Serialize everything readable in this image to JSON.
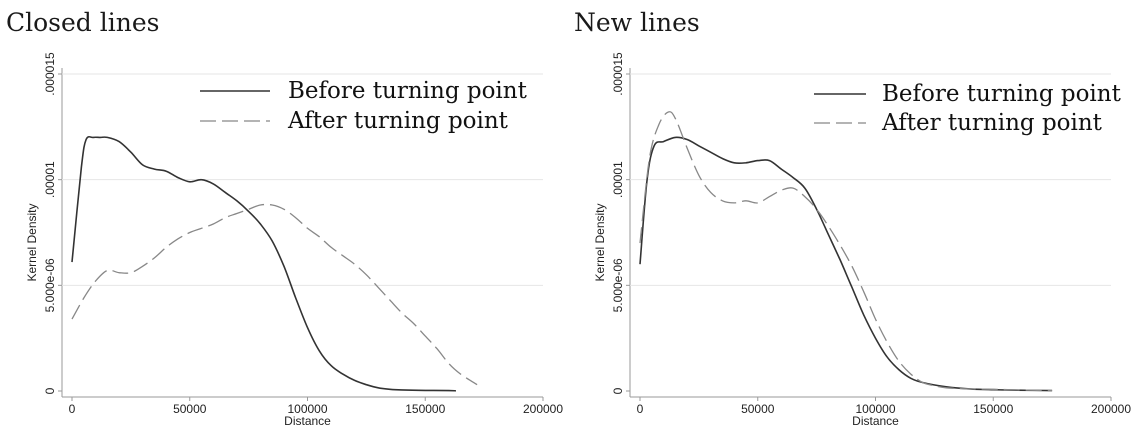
{
  "panels": [
    {
      "title": "Closed lines"
    },
    {
      "title": "New lines"
    }
  ],
  "chart_data": [
    {
      "type": "line",
      "title": "Closed lines",
      "xlabel": "Distance",
      "ylabel": "Kernel Density",
      "xlim": [
        0,
        200000
      ],
      "ylim": [
        0,
        1.5e-05
      ],
      "xticks": [
        0,
        50000,
        100000,
        150000,
        200000
      ],
      "xtick_labels": [
        "0",
        "50000",
        "100000",
        "150000",
        "200000"
      ],
      "yticks": [
        0,
        5e-06,
        1e-05,
        1.5e-05
      ],
      "ytick_labels": [
        "0",
        "5.000e-06",
        ".00001",
        ".000015"
      ],
      "grid": "horizontal",
      "legend_position": "top-right",
      "series": [
        {
          "name": "Before turning point",
          "style": "solid",
          "color": "#333333",
          "x": [
            0,
            4000,
            6000,
            9000,
            12000,
            15000,
            20000,
            25000,
            30000,
            35000,
            40000,
            45000,
            50000,
            55000,
            60000,
            65000,
            70000,
            75000,
            80000,
            85000,
            90000,
            95000,
            100000,
            105000,
            110000,
            115000,
            120000,
            125000,
            130000,
            135000,
            140000,
            150000,
            160000,
            163000
          ],
          "y": [
            6.1e-06,
            1.06e-05,
            1.19e-05,
            1.2e-05,
            1.2e-05,
            1.2e-05,
            1.18e-05,
            1.13e-05,
            1.07e-05,
            1.05e-05,
            1.04e-05,
            1.01e-05,
            9.9e-06,
            1e-05,
            9.8e-06,
            9.4e-06,
            9e-06,
            8.5e-06,
            7.9e-06,
            7.1e-06,
            5.9e-06,
            4.4e-06,
            3e-06,
            1.9e-06,
            1.2e-06,
            8e-07,
            5e-07,
            3e-07,
            1.5e-07,
            8e-08,
            5e-08,
            3e-08,
            2e-08,
            1e-08
          ]
        },
        {
          "name": "After turning point",
          "style": "dashed",
          "color": "#888888",
          "x": [
            0,
            5000,
            10000,
            15000,
            20000,
            25000,
            30000,
            35000,
            40000,
            45000,
            50000,
            55000,
            60000,
            65000,
            70000,
            75000,
            80000,
            85000,
            90000,
            95000,
            100000,
            105000,
            110000,
            115000,
            120000,
            125000,
            130000,
            135000,
            140000,
            145000,
            150000,
            155000,
            160000,
            165000,
            172000
          ],
          "y": [
            3.4e-06,
            4.4e-06,
            5.2e-06,
            5.7e-06,
            5.6e-06,
            5.6e-06,
            5.9e-06,
            6.3e-06,
            6.8e-06,
            7.2e-06,
            7.5e-06,
            7.7e-06,
            7.9e-06,
            8.2e-06,
            8.4e-06,
            8.6e-06,
            8.8e-06,
            8.8e-06,
            8.6e-06,
            8.2e-06,
            7.7e-06,
            7.3e-06,
            6.8e-06,
            6.4e-06,
            6e-06,
            5.5e-06,
            4.9e-06,
            4.3e-06,
            3.7e-06,
            3.2e-06,
            2.6e-06,
            2e-06,
            1.3e-06,
            8e-07,
            3e-07
          ]
        }
      ]
    },
    {
      "type": "line",
      "title": "New lines",
      "xlabel": "Distance",
      "ylabel": "Kernel Density",
      "xlim": [
        0,
        200000
      ],
      "ylim": [
        0,
        1.5e-05
      ],
      "xticks": [
        0,
        50000,
        100000,
        150000,
        200000
      ],
      "xtick_labels": [
        "0",
        "50000",
        "100000",
        "150000",
        "200000"
      ],
      "yticks": [
        0,
        5e-06,
        1e-05,
        1.5e-05
      ],
      "ytick_labels": [
        "0",
        "5.000e-06",
        ".00001",
        ".000015"
      ],
      "grid": "horizontal",
      "legend_position": "top-right",
      "series": [
        {
          "name": "Before turning point",
          "style": "solid",
          "color": "#333333",
          "x": [
            0,
            3000,
            6000,
            10000,
            15000,
            20000,
            25000,
            30000,
            35000,
            40000,
            45000,
            50000,
            55000,
            60000,
            65000,
            70000,
            75000,
            80000,
            85000,
            90000,
            95000,
            100000,
            105000,
            110000,
            115000,
            120000,
            130000,
            140000,
            150000,
            160000,
            175000
          ],
          "y": [
            6e-06,
            1e-05,
            1.16e-05,
            1.18e-05,
            1.2e-05,
            1.19e-05,
            1.16e-05,
            1.13e-05,
            1.1e-05,
            1.08e-05,
            1.08e-05,
            1.09e-05,
            1.09e-05,
            1.05e-05,
            1.01e-05,
            9.6e-06,
            8.6e-06,
            7.4e-06,
            6.2e-06,
            4.9e-06,
            3.6e-06,
            2.5e-06,
            1.6e-06,
            1e-06,
            6e-07,
            4e-07,
            2e-07,
            1e-07,
            6e-08,
            4e-08,
            2e-08
          ]
        },
        {
          "name": "After turning point",
          "style": "dashed",
          "color": "#888888",
          "x": [
            0,
            4000,
            8000,
            12000,
            15000,
            20000,
            25000,
            30000,
            35000,
            40000,
            45000,
            50000,
            55000,
            60000,
            65000,
            70000,
            75000,
            80000,
            85000,
            90000,
            95000,
            100000,
            105000,
            110000,
            115000,
            120000,
            125000,
            130000,
            140000,
            150000,
            160000,
            175000
          ],
          "y": [
            7e-06,
            1.1e-05,
            1.26e-05,
            1.32e-05,
            1.29e-05,
            1.15e-05,
            1.02e-05,
            9.4e-06,
            9e-06,
            8.9e-06,
            9e-06,
            8.9e-06,
            9.2e-06,
            9.5e-06,
            9.6e-06,
            9.2e-06,
            8.6e-06,
            7.8e-06,
            6.9e-06,
            5.9e-06,
            4.7e-06,
            3.4e-06,
            2.3e-06,
            1.4e-06,
            8e-07,
            4e-07,
            2.5e-07,
            1.5e-07,
            1e-07,
            8e-08,
            5e-08,
            2e-08
          ]
        }
      ]
    }
  ]
}
